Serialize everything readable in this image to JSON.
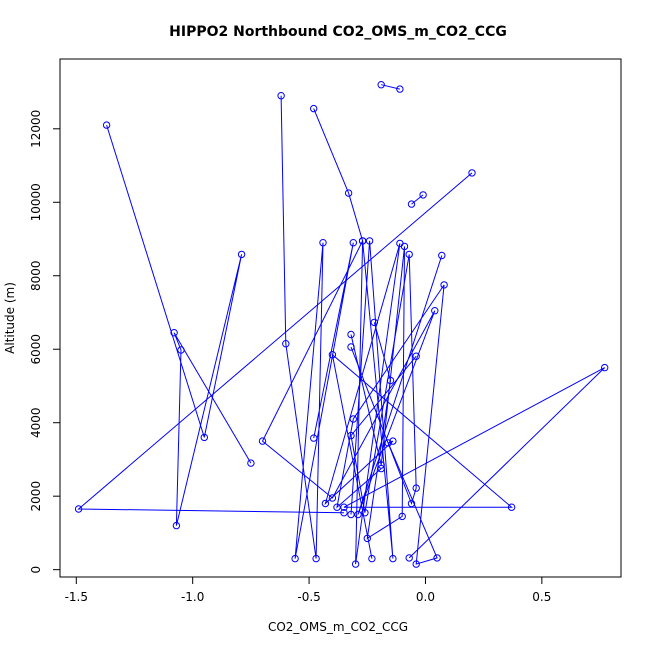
{
  "chart_data": {
    "type": "line",
    "title": "HIPPO2 Northbound CO2_OMS_m_CO2_CCG",
    "xlabel": "CO2_OMS_m_CO2_CCG",
    "ylabel": "Altitude (m)",
    "xlim": [
      -1.57,
      0.84
    ],
    "ylim": [
      -200,
      13900
    ],
    "xticks": [
      -1.5,
      -1.0,
      -0.5,
      0.0,
      0.5
    ],
    "xtick_labels": [
      "-1.5",
      "-1.0",
      "-0.5",
      "0.0",
      "0.5"
    ],
    "yticks": [
      0,
      2000,
      4000,
      6000,
      8000,
      10000,
      12000
    ],
    "ytick_labels": [
      "0",
      "2000",
      "4000",
      "6000",
      "8000",
      "10000",
      "12000"
    ],
    "grid": false,
    "legend": "none",
    "series": [
      {
        "color": "#0000ff",
        "marker": "open-circle",
        "points": [
          [
            -0.19,
            13200
          ],
          [
            -0.11,
            13080
          ],
          [
            0.2,
            10800
          ],
          [
            -1.49,
            1650
          ],
          [
            -0.35,
            1550
          ],
          [
            -0.06,
            9950
          ],
          [
            -0.01,
            10200
          ],
          [
            -1.37,
            12100
          ],
          [
            -0.95,
            3600
          ],
          [
            -0.79,
            8580
          ],
          [
            -1.07,
            1200
          ],
          [
            -1.05,
            5980
          ],
          [
            -1.08,
            6450
          ],
          [
            -0.75,
            2900
          ],
          [
            -0.62,
            12900
          ],
          [
            -0.6,
            6150
          ],
          [
            -0.47,
            300
          ],
          [
            -0.44,
            8900
          ],
          [
            -0.56,
            300
          ],
          [
            -0.31,
            8900
          ],
          [
            -0.48,
            3580
          ],
          [
            -0.48,
            12550
          ],
          [
            -0.33,
            10250
          ],
          [
            -0.27,
            8950
          ],
          [
            -0.14,
            300
          ],
          [
            -0.24,
            8950
          ],
          [
            -0.32,
            1500
          ],
          [
            -0.22,
            6730
          ],
          [
            -0.15,
            5150
          ],
          [
            -0.25,
            850
          ],
          [
            -0.1,
            1450
          ],
          [
            -0.09,
            8800
          ],
          [
            -0.19,
            2850
          ],
          [
            -0.32,
            6400
          ],
          [
            -0.32,
            6060
          ],
          [
            -0.06,
            1800
          ],
          [
            -0.04,
            2220
          ],
          [
            -0.07,
            8580
          ],
          [
            -0.26,
            1550
          ],
          [
            -0.32,
            3650
          ],
          [
            -0.04,
            5810
          ],
          [
            -0.07,
            320
          ],
          [
            0.77,
            5500
          ],
          [
            -0.35,
            1700
          ],
          [
            0.37,
            1700
          ],
          [
            -0.4,
            5850
          ],
          [
            -0.23,
            300
          ],
          [
            0.07,
            8550
          ],
          [
            -0.29,
            1500
          ],
          [
            0.04,
            7050
          ],
          [
            -0.4,
            1950
          ],
          [
            -0.7,
            3500
          ],
          [
            -0.27,
            8950
          ],
          [
            -0.3,
            150
          ],
          [
            -0.11,
            8880
          ],
          [
            -0.43,
            1800
          ],
          [
            -0.14,
            3500
          ],
          [
            -0.16,
            3450
          ],
          [
            0.05,
            320
          ],
          [
            -0.04,
            150
          ],
          [
            0.08,
            7750
          ],
          [
            -0.31,
            4100
          ],
          [
            -0.38,
            1700
          ],
          [
            -0.19,
            2750
          ]
        ],
        "breaks_after": [
          1,
          4,
          6,
          13,
          20,
          26,
          33,
          40,
          46
        ]
      }
    ]
  }
}
